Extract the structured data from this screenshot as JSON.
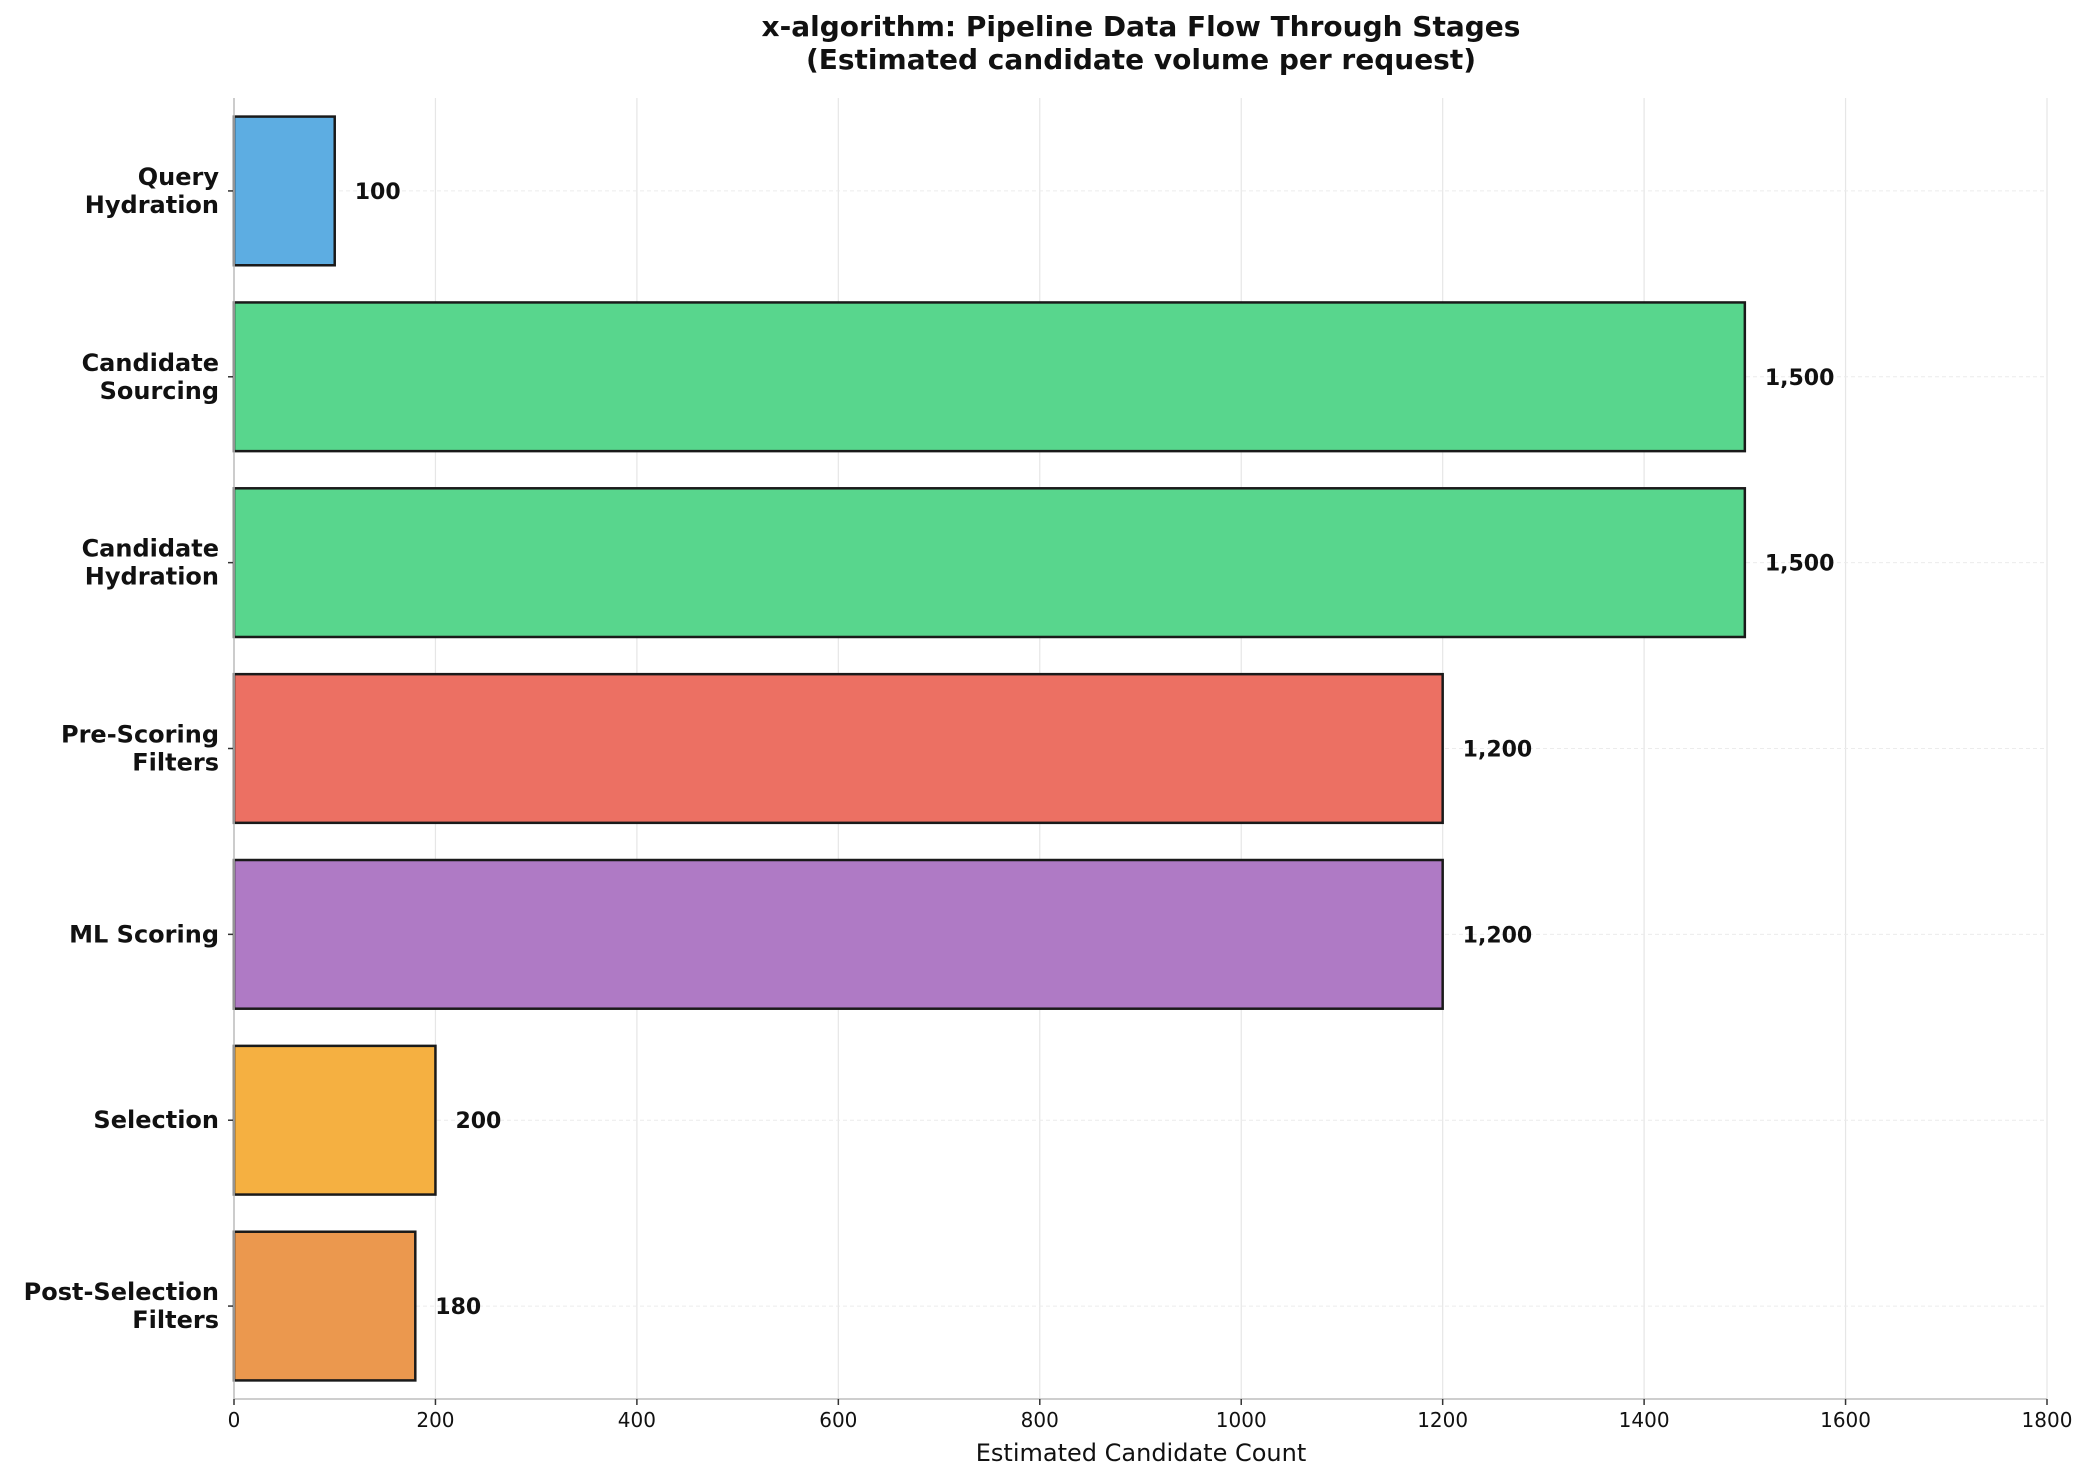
{
  "chart_data": {
    "type": "bar",
    "orientation": "horizontal",
    "title": "x-algorithm: Pipeline Data Flow Through Stages",
    "subtitle": "(Estimated candidate volume per request)",
    "xlabel": "Estimated Candidate Count",
    "ylabel": "",
    "xlim": [
      0,
      1800
    ],
    "xticks": [
      0,
      200,
      400,
      600,
      800,
      1000,
      1200,
      1400,
      1600,
      1800
    ],
    "grid": true,
    "categories": [
      [
        "Query",
        "Hydration"
      ],
      [
        "Candidate",
        "Sourcing"
      ],
      [
        "Candidate",
        "Hydration"
      ],
      [
        "Pre-Scoring",
        "Filters"
      ],
      [
        "ML Scoring"
      ],
      [
        "Selection"
      ],
      [
        "Post-Selection",
        "Filters"
      ]
    ],
    "values": [
      100,
      1500,
      1500,
      1200,
      1200,
      200,
      180
    ],
    "value_labels": [
      "100",
      "1,500",
      "1,500",
      "1,200",
      "1,200",
      "200",
      "180"
    ],
    "colors": [
      "#5DADE2",
      "#58D68D",
      "#58D68D",
      "#EC7063",
      "#AF7AC5",
      "#F5B041",
      "#EB984E"
    ]
  }
}
